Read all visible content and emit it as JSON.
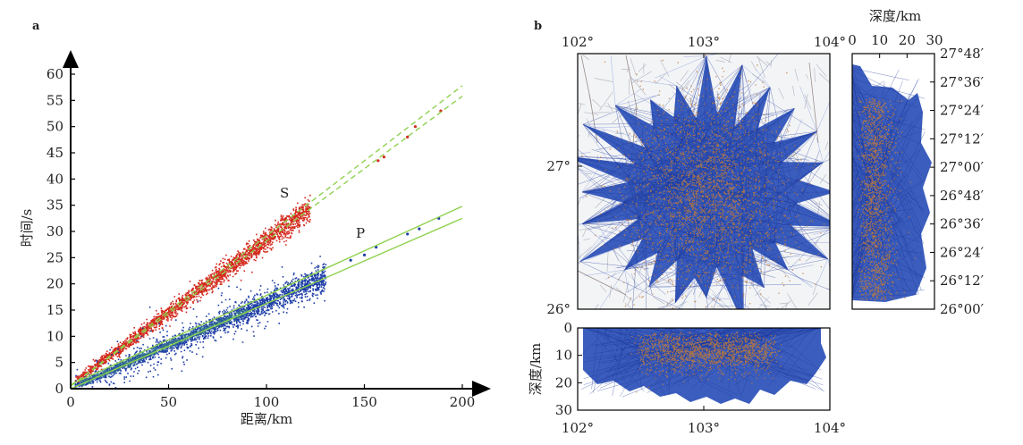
{
  "panels": {
    "a": "a",
    "b": "b"
  },
  "chart_data": [
    {
      "type": "scatter",
      "panel": "a",
      "xlabel": "距离/km",
      "ylabel": "时间/s",
      "xlim": [
        0,
        200
      ],
      "ylim": [
        0,
        60
      ],
      "xticks": [
        "0",
        "50",
        "100",
        "150",
        "200"
      ],
      "yticks": [
        "0",
        "5",
        "10",
        "15",
        "20",
        "25",
        "30",
        "35",
        "40",
        "45",
        "50",
        "55",
        "60"
      ],
      "annotations": [
        "S",
        "P"
      ],
      "series": [
        {
          "name": "S",
          "color": "#d42a1e",
          "trend": {
            "x": [
              0,
              200
            ],
            "y": [
              1,
              56
            ]
          },
          "lines": [
            {
              "x": [
                0,
                200
              ],
              "y": [
                0.5,
                55.8
              ],
              "style": "dashed"
            },
            {
              "x": [
                0,
                200
              ],
              "y": [
                0.5,
                57.8
              ],
              "style": "dashed"
            }
          ],
          "outliers": [
            [
              157,
              43.5
            ],
            [
              160,
              44.2
            ],
            [
              172,
              48
            ],
            [
              176,
              50
            ],
            [
              189,
              53
            ]
          ]
        },
        {
          "name": "P",
          "color": "#1f3fa8",
          "trend": {
            "x": [
              0,
              200
            ],
            "y": [
              0.3,
              33
            ]
          },
          "lines": [
            {
              "x": [
                0,
                200
              ],
              "y": [
                0,
                32.5
              ],
              "style": "solid"
            },
            {
              "x": [
                0,
                200
              ],
              "y": [
                0.8,
                34.8
              ],
              "style": "solid"
            }
          ],
          "outliers": [
            [
              143,
              24.5
            ],
            [
              150,
              25.5
            ],
            [
              156,
              27
            ],
            [
              172,
              29.5
            ],
            [
              178,
              30.5
            ],
            [
              188,
              32.5
            ]
          ]
        }
      ],
      "line_color": "#8fd14f"
    },
    {
      "type": "map",
      "panel": "b",
      "x_ticks": [
        "102°",
        "103°",
        "104°"
      ],
      "y_ticks_left": [
        "26°",
        "27°"
      ],
      "y_ticks_right": [
        "27°48′",
        "27°36′",
        "27°24′",
        "27°12′",
        "27°00′",
        "26°48′",
        "26°36′",
        "26°24′",
        "26°12′",
        "26°00′"
      ],
      "depth_label": "深度/km",
      "depth_ticks_h": [
        "0",
        "10",
        "20",
        "30"
      ],
      "depth_ticks_v": [
        "0",
        "10",
        "20",
        "30"
      ],
      "ray_color": "#2a4fb8",
      "event_color": "#c07a3a"
    }
  ]
}
